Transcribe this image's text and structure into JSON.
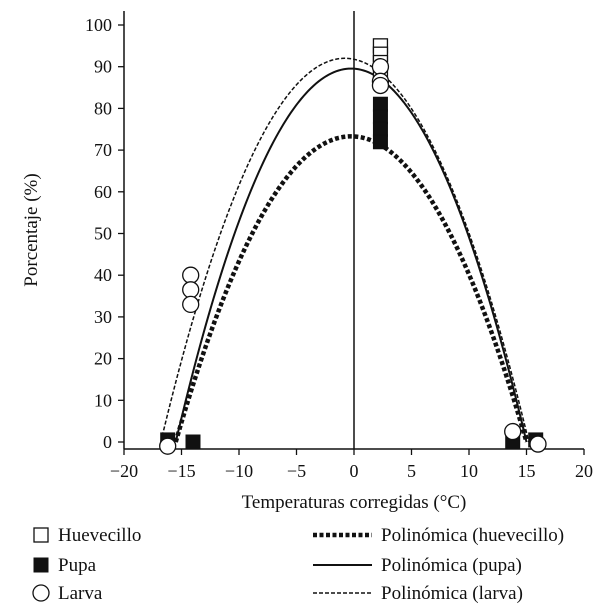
{
  "chart_data": {
    "type": "scatter",
    "title": "",
    "xlabel": "Temperaturas corregidas (°C)",
    "ylabel": "Porcentaje (%)",
    "xlim": [
      -20,
      20
    ],
    "ylim": [
      0,
      100
    ],
    "xticks": [
      -20,
      -15,
      -10,
      -5,
      0,
      5,
      10,
      15,
      20
    ],
    "xtick_labels": [
      "−20",
      "−15",
      "−10",
      "−5",
      "0",
      "5",
      "10",
      "15",
      "20"
    ],
    "yticks": [
      0,
      10,
      20,
      30,
      40,
      50,
      60,
      70,
      80,
      90,
      100
    ],
    "ytick_labels": [
      "0",
      "10",
      "20",
      "30",
      "40",
      "50",
      "60",
      "70",
      "80",
      "90",
      "100"
    ],
    "grid": false,
    "legend_position": "bottom",
    "series": [
      {
        "name": "Huevecillo",
        "kind": "scatter",
        "marker": "open-square",
        "color": "#111111",
        "points": [
          [
            2.3,
            95
          ],
          [
            2.3,
            93
          ],
          [
            2.3,
            91
          ],
          [
            2.3,
            88
          ]
        ]
      },
      {
        "name": "Pupa",
        "kind": "scatter",
        "marker": "filled-square",
        "color": "#111111",
        "points": [
          [
            -16.2,
            0.5
          ],
          [
            -14,
            0
          ],
          [
            2.3,
            81
          ],
          [
            2.3,
            78
          ],
          [
            2.3,
            75
          ],
          [
            2.3,
            72
          ],
          [
            13.8,
            0
          ],
          [
            15.8,
            0.5
          ]
        ]
      },
      {
        "name": "Larva",
        "kind": "scatter",
        "marker": "open-circle",
        "color": "#111111",
        "points": [
          [
            -16.2,
            -1
          ],
          [
            -14.2,
            40
          ],
          [
            -14.2,
            36.5
          ],
          [
            -14.2,
            33
          ],
          [
            2.3,
            90
          ],
          [
            2.3,
            86.5
          ],
          [
            2.3,
            85.5
          ],
          [
            13.8,
            2.5
          ],
          [
            16,
            -0.5
          ]
        ]
      },
      {
        "name": "Polinómica (huevecillo)",
        "kind": "fit",
        "style": "thick-dotted",
        "color": "#111111",
        "roots": [
          -15.5,
          15
        ],
        "peak": {
          "x": -0.25,
          "y": 73.3
        }
      },
      {
        "name": "Polinómica (pupa)",
        "kind": "fit",
        "style": "solid",
        "color": "#111111",
        "roots": [
          -15.5,
          15
        ],
        "peak": {
          "x": -0.6,
          "y": 89.5
        }
      },
      {
        "name": "Polinómica (larva)",
        "kind": "fit",
        "style": "thin-dashed",
        "color": "#111111",
        "roots": [
          -16.8,
          15.2
        ],
        "peak": {
          "x": -1.0,
          "y": 92
        }
      }
    ]
  }
}
